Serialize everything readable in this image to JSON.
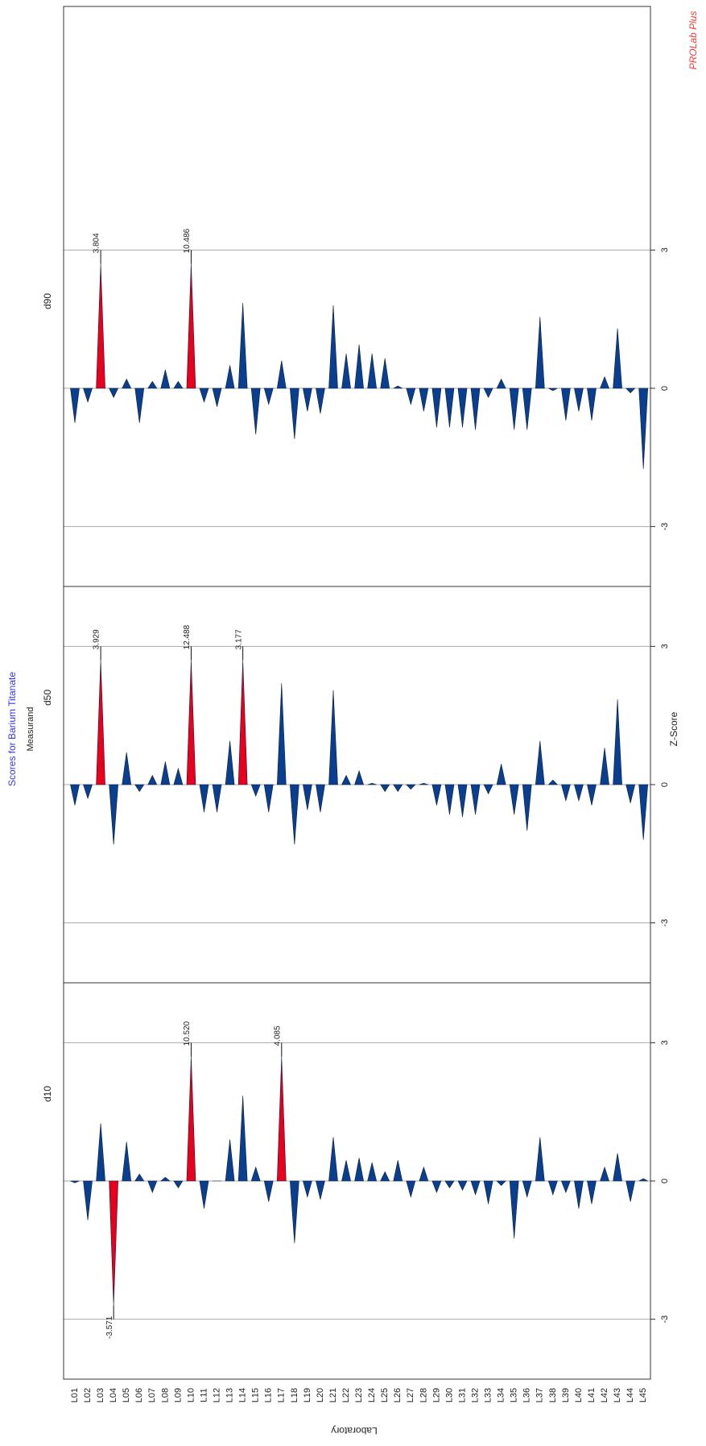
{
  "title": "Scores for Barium Titanate",
  "measurand_label": "Measurand",
  "brand": "PROLab Plus",
  "colors": {
    "bar": "#0a3f8f",
    "bar_outline": "#0a1f40",
    "outlier": "#e8001c",
    "title": "#3333ff",
    "brand": "#ff3333",
    "frame": "#333333",
    "gridline": "#aaaaaa"
  },
  "chart_data": {
    "type": "bar",
    "orientation": "rotated-90",
    "title": "Scores for Barium Titanate",
    "xlabel": "Laboratory",
    "ylabel": "Z-Score",
    "facet_label": "Measurand",
    "ylim": [
      -4.3,
      4.3
    ],
    "zscore_ticks": [
      -3,
      0,
      3
    ],
    "categories": [
      "L01",
      "L02",
      "L03",
      "L04",
      "L05",
      "L06",
      "L07",
      "L08",
      "L09",
      "L10",
      "L11",
      "L12",
      "L13",
      "L14",
      "L15",
      "L16",
      "L17",
      "L18",
      "L19",
      "L20",
      "L21",
      "L22",
      "L23",
      "L24",
      "L25",
      "L26",
      "L27",
      "L28",
      "L29",
      "L30",
      "L31",
      "L32",
      "L33",
      "L34",
      "L35",
      "L36",
      "L37",
      "L38",
      "L39",
      "L40",
      "L41",
      "L42",
      "L43",
      "L44",
      "L45"
    ],
    "series": [
      {
        "name": "d10",
        "values": [
          -0.04,
          -0.85,
          1.25,
          -2.7,
          0.85,
          0.15,
          -0.25,
          0.08,
          -0.15,
          2.7,
          -0.6,
          0.0,
          0.9,
          1.85,
          0.3,
          -0.45,
          2.7,
          -1.35,
          -0.35,
          -0.4,
          0.95,
          0.45,
          0.5,
          0.4,
          0.2,
          0.45,
          -0.35,
          0.3,
          -0.25,
          -0.15,
          -0.2,
          -0.3,
          -0.5,
          -0.1,
          -1.25,
          -0.35,
          0.95,
          -0.3,
          -0.25,
          -0.6,
          -0.5,
          0.3,
          0.6,
          -0.45,
          0.05
        ],
        "labels": [
          {
            "lab": "L04",
            "text": "-3.571"
          },
          {
            "lab": "L10",
            "text": "10.520"
          },
          {
            "lab": "L17",
            "text": "4.085"
          }
        ]
      },
      {
        "name": "d50",
        "values": [
          -0.45,
          -0.3,
          2.7,
          -1.3,
          0.7,
          -0.15,
          0.2,
          0.5,
          0.35,
          2.7,
          -0.6,
          -0.6,
          0.95,
          2.7,
          -0.25,
          -0.6,
          2.2,
          -1.3,
          -0.55,
          -0.6,
          2.05,
          0.2,
          0.3,
          0.03,
          -0.15,
          -0.15,
          -0.1,
          0.03,
          -0.45,
          -0.65,
          -0.7,
          -0.65,
          -0.2,
          0.45,
          -0.65,
          -1.0,
          0.95,
          0.1,
          -0.35,
          -0.35,
          -0.45,
          0.8,
          1.85,
          -0.4,
          -1.2
        ],
        "labels": [
          {
            "lab": "L03",
            "text": "3.929"
          },
          {
            "lab": "L10",
            "text": "12.488"
          },
          {
            "lab": "L14",
            "text": "3.177"
          }
        ]
      },
      {
        "name": "d90",
        "values": [
          -0.75,
          -0.3,
          2.7,
          -0.2,
          0.2,
          -0.75,
          0.15,
          0.4,
          0.15,
          2.7,
          -0.3,
          -0.4,
          0.5,
          1.85,
          -1.0,
          -0.35,
          0.6,
          -1.1,
          -0.5,
          -0.55,
          1.8,
          0.75,
          0.95,
          0.75,
          0.65,
          0.05,
          -0.35,
          -0.5,
          -0.85,
          -0.85,
          -0.85,
          -0.9,
          -0.2,
          0.2,
          -0.9,
          -0.9,
          1.55,
          -0.05,
          -0.7,
          -0.5,
          -0.7,
          0.25,
          1.3,
          -0.1,
          -1.75
        ],
        "labels": [
          {
            "lab": "L03",
            "text": "3.804"
          },
          {
            "lab": "L10",
            "text": "10.486"
          }
        ]
      }
    ]
  }
}
